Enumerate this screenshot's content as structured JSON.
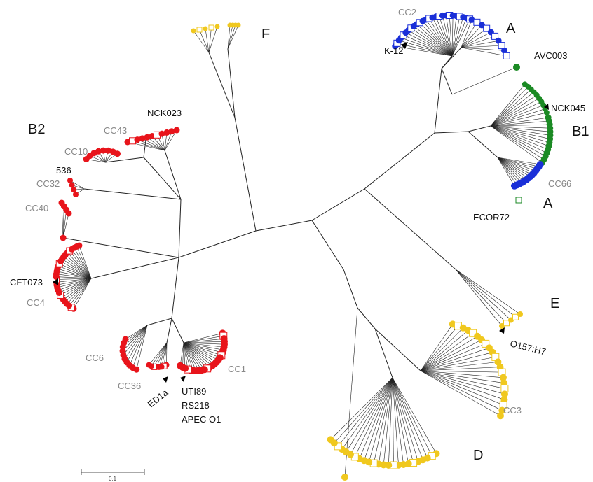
{
  "groups": {
    "A_top": "A",
    "A_bottom": "A",
    "B1": "B1",
    "B2": "B2",
    "D": "D",
    "E": "E",
    "F": "F"
  },
  "complexes": {
    "cc1": "CC1",
    "cc2": "CC2",
    "cc3": "CC3",
    "cc4": "CC4",
    "cc6": "CC6",
    "cc10": "CC10",
    "cc32": "CC32",
    "cc36": "CC36",
    "cc40": "CC40",
    "cc43": "CC43",
    "cc66": "CC66"
  },
  "strains": {
    "k12": "K-12",
    "avc003": "AVC003",
    "nck045": "NCK045",
    "ecor72": "ECOR72",
    "o157": "O157:H7",
    "nck023": "NCK023",
    "s536": "536",
    "cft073": "CFT073",
    "ed1a": "ED1a",
    "uti89": "UTI89",
    "rs218": "RS218",
    "apec": "APEC O1"
  },
  "scale": {
    "label": "0.1"
  },
  "colors": {
    "B2": "#e8141b",
    "A": "#1a2fd8",
    "B1": "#1b8a24",
    "D": "#f0c81e",
    "E": "#f0c81e",
    "F": "#f0c81e",
    "branch": "#222222"
  }
}
